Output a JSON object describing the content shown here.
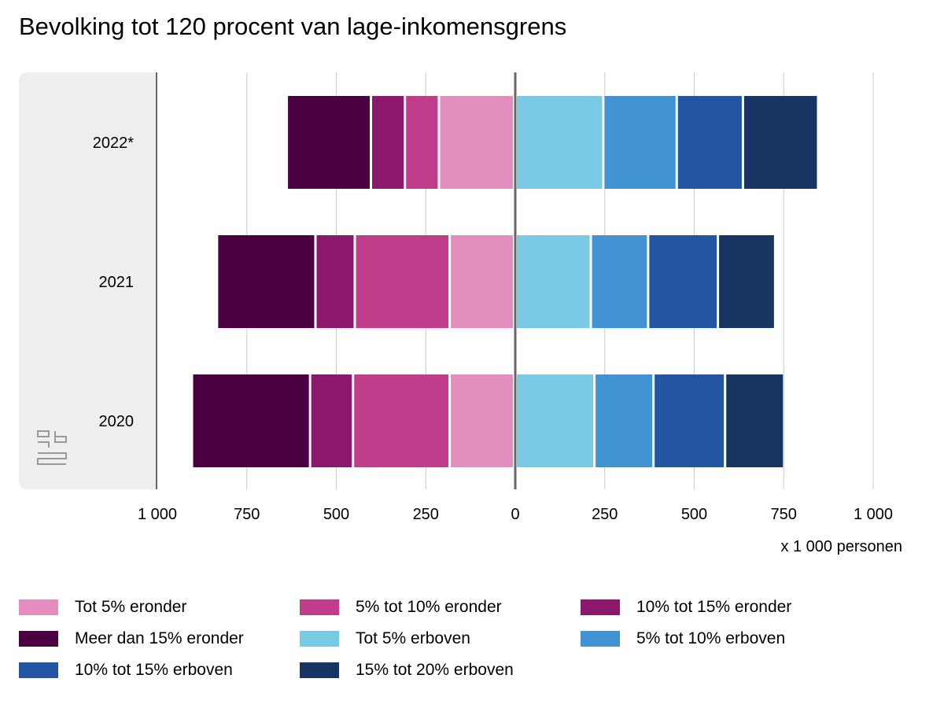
{
  "chart_data": {
    "type": "bar",
    "orientation": "horizontal-diverging",
    "title": "Bevolking tot 120 procent van lage-inkomensgrens",
    "xlabel": "x 1 000 personen",
    "xlim": [
      -1000,
      1000
    ],
    "ticks": [
      -1000,
      -750,
      -500,
      -250,
      0,
      250,
      500,
      750,
      1000
    ],
    "tick_labels": [
      "1 000",
      "750",
      "500",
      "250",
      "0",
      "250",
      "500",
      "750",
      "1 000"
    ],
    "categories": [
      "2022*",
      "2021",
      "2020"
    ],
    "negative_series": [
      {
        "name": "Tot 5% eronder",
        "color": "#e38ebf",
        "values": [
          210,
          180,
          180
        ]
      },
      {
        "name": "5% tot 10% eronder",
        "color": "#c03d8b",
        "values": [
          95,
          265,
          270
        ]
      },
      {
        "name": "10% tot 15% eronder",
        "color": "#8b186d",
        "values": [
          95,
          110,
          120
        ]
      },
      {
        "name": "Meer dan 15% eronder",
        "color": "#4b0042",
        "values": [
          235,
          275,
          330
        ]
      }
    ],
    "positive_series": [
      {
        "name": "Tot 5% erboven",
        "color": "#78cae5",
        "values": [
          245,
          210,
          220
        ]
      },
      {
        "name": "5% tot 10% erboven",
        "color": "#4193d3",
        "values": [
          205,
          160,
          165
        ]
      },
      {
        "name": "10% tot 15% erboven",
        "color": "#2455a2",
        "values": [
          185,
          195,
          200
        ]
      },
      {
        "name": "15% tot 20% erboven",
        "color": "#173563",
        "values": [
          210,
          160,
          165
        ]
      }
    ],
    "legend_order": [
      "Tot 5% eronder",
      "5% tot 10% eronder",
      "10% tot 15% eronder",
      "Meer dan 15% eronder",
      "Tot 5% erboven",
      "5% tot 10% erboven",
      "10% tot 15% erboven",
      "15% tot 20% erboven"
    ],
    "grid": true,
    "legend_position": "bottom"
  }
}
